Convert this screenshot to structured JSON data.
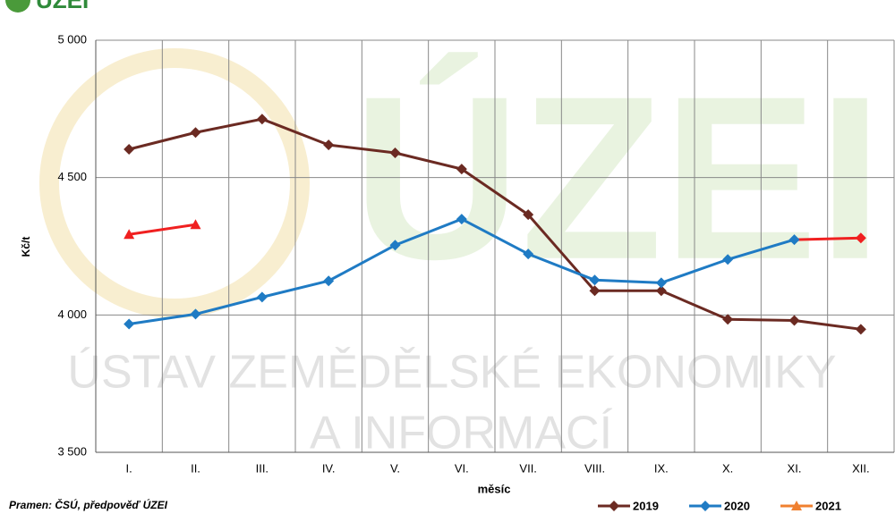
{
  "logo": "ÚZEI",
  "watermark": {
    "big": "ÚZEI",
    "line1": "ÚSTAV ZEMĚDĚLSKÉ EKONOMIKY",
    "line2": "A INFORMACÍ"
  },
  "source": "Pramen: ČSÚ, předpověď ÚZEI",
  "chart_data": {
    "type": "line",
    "x_label": "měsíc",
    "y_label": "Kč/t",
    "categories": [
      "I.",
      "II.",
      "III.",
      "IV.",
      "V.",
      "VI.",
      "VII.",
      "VIII.",
      "IX.",
      "X.",
      "XI.",
      "XII."
    ],
    "series": [
      {
        "name": "2019",
        "color": "#6b2a22",
        "marker": "diamond",
        "values": [
          4603,
          4664,
          4713,
          4619,
          4590,
          4531,
          4365,
          4088,
          4088,
          3984,
          3980,
          3948
        ]
      },
      {
        "name": "2020",
        "color": "#1f7bc4",
        "marker": "diamond",
        "point_colors": [
          "#1f7bc4",
          "#1f7bc4",
          "#1f7bc4",
          "#1f7bc4",
          "#1f7bc4",
          "#1f7bc4",
          "#1f7bc4",
          "#1f7bc4",
          "#1f7bc4",
          "#1f7bc4",
          "#1f7bc4",
          "#f02020"
        ],
        "values": [
          3967,
          4003,
          4065,
          4124,
          4254,
          4349,
          4222,
          4127,
          4117,
          4202,
          4274,
          4280
        ]
      },
      {
        "name": "2021",
        "color": "#f02020",
        "legend_color": "#f08030",
        "marker": "triangle",
        "values": [
          4293,
          4329,
          null,
          null,
          null,
          null,
          null,
          null,
          null,
          null,
          null,
          null
        ]
      }
    ],
    "ylim": [
      3500,
      5000
    ],
    "yticks": [
      {
        "value": 3500,
        "label": "3 500"
      },
      {
        "value": 4000,
        "label": "4 000"
      },
      {
        "value": 4500,
        "label": "4 500"
      },
      {
        "value": 5000,
        "label": "5 000"
      }
    ],
    "grid": true,
    "legend": "bottom-right"
  }
}
